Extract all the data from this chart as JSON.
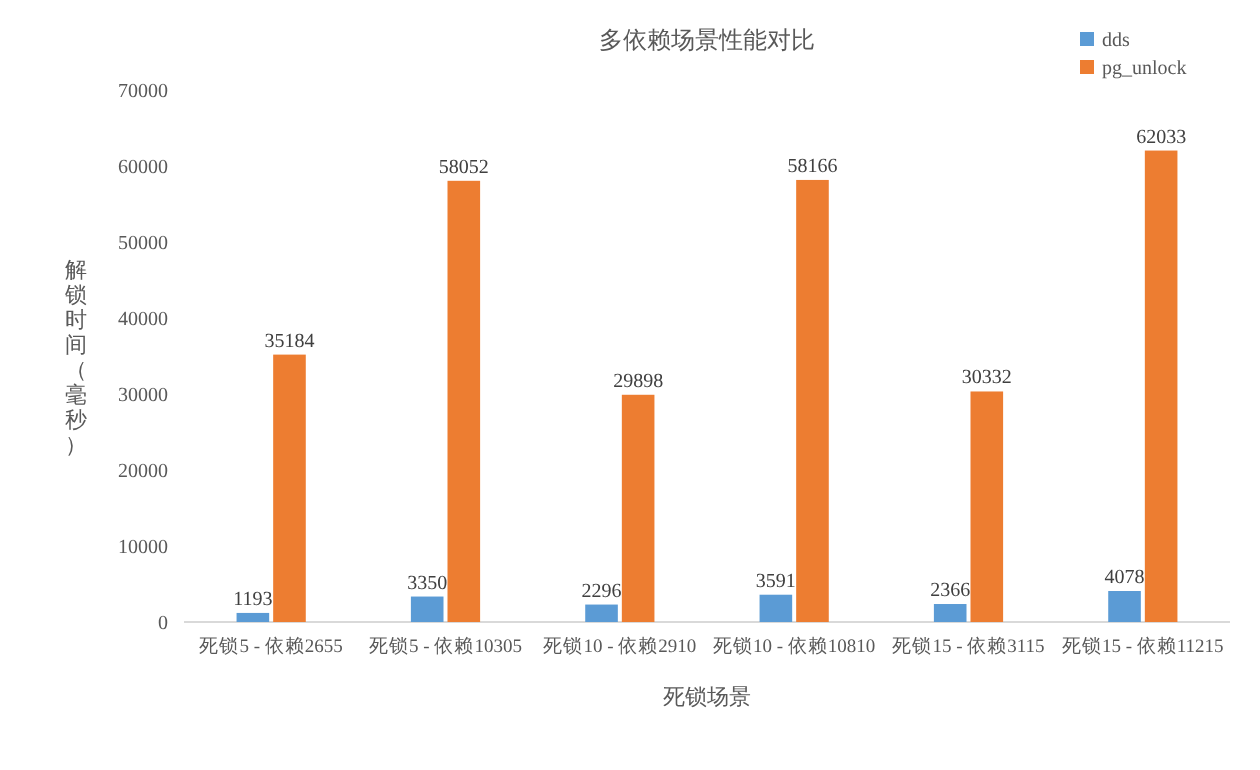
{
  "chart_data": {
    "type": "bar",
    "title": "多依赖场景性能对比",
    "xlabel": "死锁场景",
    "ylabel": "解锁时间（毫秒）",
    "categories": [
      "死锁5 - 依赖2655",
      "死锁5 - 依赖10305",
      "死锁10 - 依赖2910",
      "死锁10 - 依赖10810",
      "死锁15 - 依赖3115",
      "死锁15 - 依赖11215"
    ],
    "series": [
      {
        "name": "dds",
        "color": "#5b9bd5",
        "values": [
          1193,
          3350,
          2296,
          3591,
          2366,
          4078
        ]
      },
      {
        "name": "pg_unlock",
        "color": "#ed7d31",
        "values": [
          35184,
          58052,
          29898,
          58166,
          30332,
          62033
        ]
      }
    ],
    "ylim": [
      0,
      70000
    ],
    "yticks": [
      0,
      10000,
      20000,
      30000,
      40000,
      50000,
      60000,
      70000
    ],
    "data_labels": true,
    "legend": "top right",
    "grid": false
  }
}
